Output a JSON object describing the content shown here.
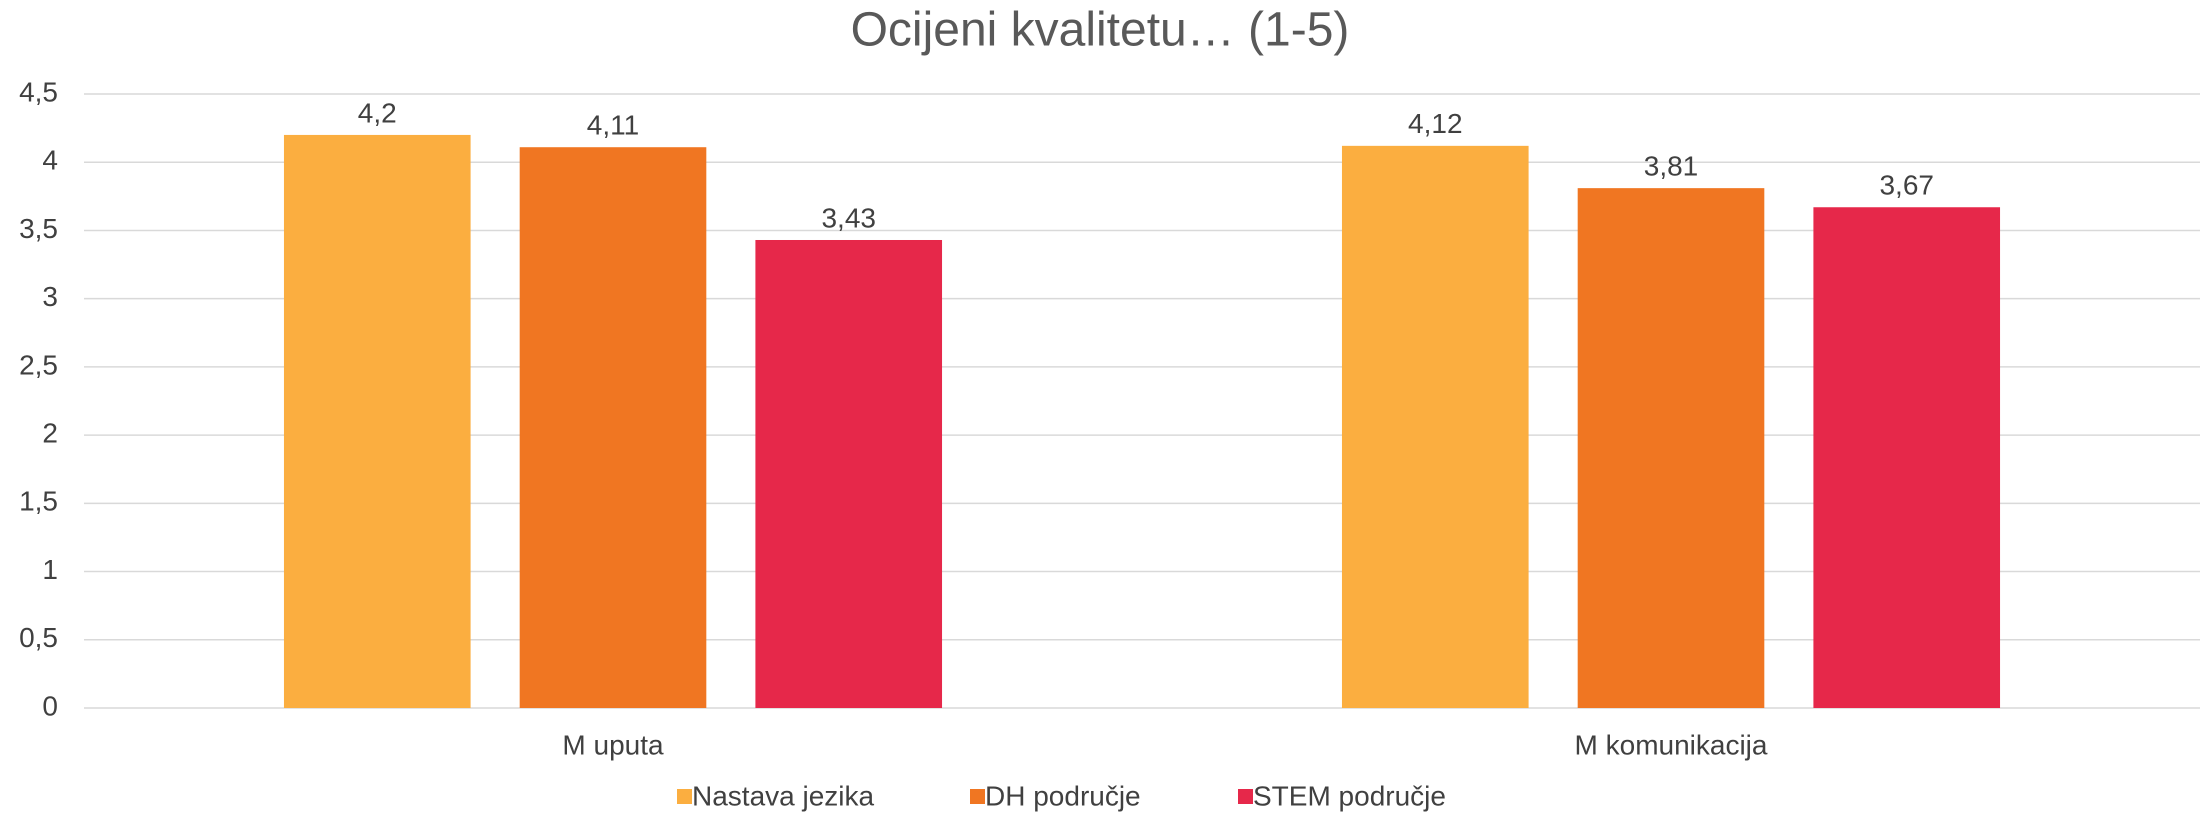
{
  "chart_data": {
    "type": "bar",
    "title": "Ocijeni kvalitetu… (1-5)",
    "categories": [
      "M uputa",
      "M komunikacija"
    ],
    "series": [
      {
        "name": "Nastava jezika",
        "color": "#FBAE40",
        "values": [
          4.2,
          4.12
        ],
        "value_labels": [
          "4,2",
          "4,12"
        ]
      },
      {
        "name": "DH područje",
        "color": "#F07622",
        "values": [
          4.11,
          3.81
        ],
        "value_labels": [
          "4,11",
          "3,81"
        ]
      },
      {
        "name": "STEM područje",
        "color": "#E6284A",
        "values": [
          3.43,
          3.67
        ],
        "value_labels": [
          "3,43",
          "3,67"
        ]
      }
    ],
    "ylim": [
      0,
      4.5
    ],
    "yticks": [
      0,
      {
        "value": 0.5,
        "label": "0,5"
      },
      1,
      {
        "value": 1.5,
        "label": "1,5"
      },
      2,
      {
        "value": 2.5,
        "label": "2,5"
      },
      3,
      {
        "value": 3.5,
        "label": "3,5"
      },
      4,
      {
        "value": 4.5,
        "label": "4,5"
      }
    ],
    "grid": true,
    "legend": "bottom"
  }
}
